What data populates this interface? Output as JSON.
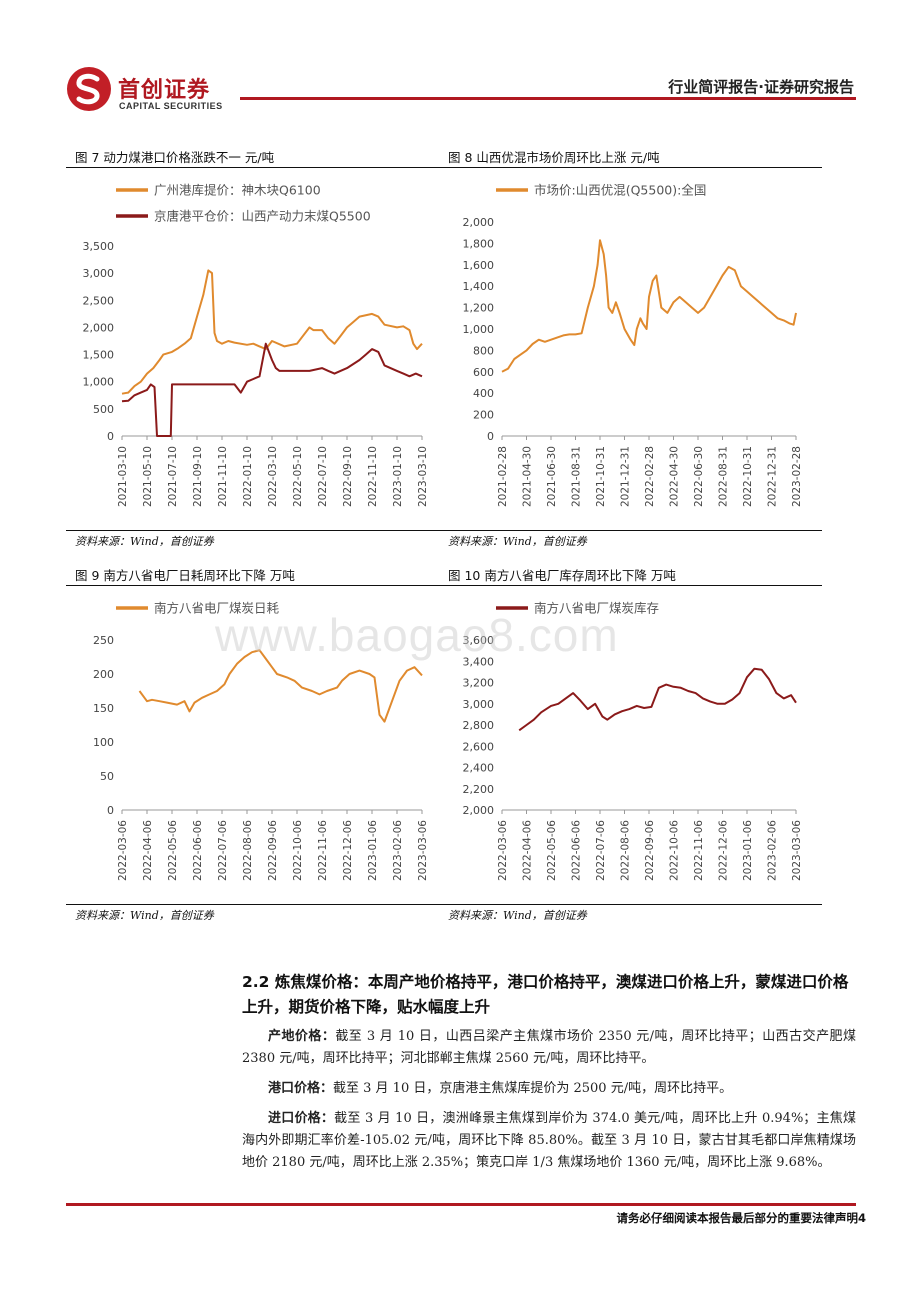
{
  "header": {
    "logo_cn": "首创证券",
    "logo_en": "CAPITAL SECURITIES",
    "report_type": "行业简评报告·证券研究报告"
  },
  "watermark": "www.baogao8.com",
  "figures": {
    "fig7": {
      "title": "图 7 动力煤港口价格涨跌不一 元/吨",
      "source": "资料来源：Wind，首创证券"
    },
    "fig8": {
      "title": "图 8 山西优混市场价周环比上涨 元/吨",
      "source": "资料来源：Wind，首创证券"
    },
    "fig9": {
      "title": "图 9 南方八省电厂日耗周环比下降 万吨",
      "source": "资料来源：Wind，首创证券"
    },
    "fig10": {
      "title": "图 10 南方八省电厂库存周环比下降 万吨",
      "source": "资料来源：Wind，首创证券"
    }
  },
  "chart_data": [
    {
      "id": "fig7",
      "type": "line",
      "title": "动力煤港口价格涨跌不一",
      "ylabel": "元/吨",
      "ylim": [
        0,
        3500
      ],
      "yticks": [
        0,
        500,
        1000,
        1500,
        2000,
        2500,
        3000,
        3500
      ],
      "ytick_labels": [
        "0",
        "500",
        "1,000",
        "1,500",
        "2,000",
        "2,500",
        "3,000",
        "3,500"
      ],
      "x_range": [
        0,
        24
      ],
      "x_ticks": [
        0,
        2,
        4,
        6,
        8,
        10,
        12,
        14,
        16,
        18,
        20,
        22,
        24
      ],
      "x_tick_labels": [
        "2021-03-10",
        "2021-05-10",
        "2021-07-10",
        "2021-09-10",
        "2021-11-10",
        "2022-01-10",
        "2022-03-10",
        "2022-05-10",
        "2022-07-10",
        "2022-09-10",
        "2022-11-10",
        "2023-01-10",
        "2023-03-10"
      ],
      "legend": "top-left",
      "series": [
        {
          "name": "广州港库提价：神木块Q6100",
          "color": "#e08a2e",
          "x": [
            0,
            0.5,
            1,
            1.5,
            2,
            2.5,
            3,
            3.3,
            4,
            4.5,
            5,
            5.5,
            6,
            6.5,
            6.9,
            7.2,
            7.4,
            7.6,
            8,
            8.5,
            9,
            10,
            10.5,
            11,
            11.5,
            12,
            13,
            14,
            15,
            15.3,
            16,
            16.5,
            17,
            17.5,
            18,
            18.5,
            19,
            20,
            20.5,
            21,
            22,
            22.5,
            23,
            23.3,
            23.6,
            24
          ],
          "values": [
            780,
            800,
            920,
            1000,
            1150,
            1250,
            1400,
            1500,
            1550,
            1620,
            1700,
            1800,
            2200,
            2600,
            3050,
            3000,
            1900,
            1750,
            1700,
            1750,
            1720,
            1680,
            1700,
            1650,
            1600,
            1750,
            1650,
            1700,
            2000,
            1950,
            1950,
            1800,
            1700,
            1850,
            2000,
            2100,
            2200,
            2250,
            2200,
            2050,
            2000,
            2020,
            1950,
            1700,
            1600,
            1700
          ]
        },
        {
          "name": "京唐港平仓价：山西产动力末煤Q5500",
          "color": "#8b1a1a",
          "x": [
            0,
            0.5,
            1,
            1.5,
            2,
            2.3,
            2.6,
            2.8,
            3,
            3.8,
            3.9,
            4,
            5,
            6,
            7,
            8,
            9,
            9.5,
            10,
            10.5,
            11,
            11.5,
            12,
            12.3,
            12.6,
            12.9,
            13.5,
            14,
            15,
            16,
            16.5,
            17,
            18,
            19,
            19.5,
            20,
            20.5,
            21,
            22,
            22.5,
            23,
            23.5,
            24
          ],
          "values": [
            640,
            650,
            750,
            800,
            850,
            950,
            900,
            0,
            0,
            0,
            0,
            950,
            950,
            950,
            950,
            950,
            950,
            800,
            1000,
            1050,
            1100,
            1700,
            1400,
            1250,
            1200,
            1200,
            1200,
            1200,
            1200,
            1250,
            1200,
            1150,
            1250,
            1400,
            1500,
            1600,
            1550,
            1300,
            1200,
            1150,
            1100,
            1150,
            1100
          ]
        }
      ]
    },
    {
      "id": "fig8",
      "type": "line",
      "title": "山西优混市场价周环比上涨",
      "ylabel": "元/吨",
      "ylim": [
        0,
        2000
      ],
      "yticks": [
        0,
        200,
        400,
        600,
        800,
        1000,
        1200,
        1400,
        1600,
        1800,
        2000
      ],
      "ytick_labels": [
        "0",
        "200",
        "400",
        "600",
        "800",
        "1,000",
        "1,200",
        "1,400",
        "1,600",
        "1,800",
        "2,000"
      ],
      "x_range": [
        0,
        24
      ],
      "x_ticks": [
        0,
        2,
        4,
        6,
        8,
        10,
        12,
        14,
        16,
        18,
        20,
        22,
        24
      ],
      "x_tick_labels": [
        "2021-02-28",
        "2021-04-30",
        "2021-06-30",
        "2021-08-31",
        "2021-10-31",
        "2021-12-31",
        "2022-02-28",
        "2022-04-30",
        "2022-06-30",
        "2022-08-31",
        "2022-10-31",
        "2022-12-31",
        "2023-02-28"
      ],
      "legend": "top-left",
      "series": [
        {
          "name": "市场价:山西优混(Q5500):全国",
          "color": "#e08a2e",
          "x": [
            0,
            0.5,
            1,
            1.5,
            2,
            2.5,
            3,
            3.5,
            4,
            4.5,
            5,
            5.5,
            6,
            6.5,
            7,
            7.5,
            7.8,
            8,
            8.3,
            8.5,
            8.7,
            9,
            9.3,
            9.6,
            10,
            10.5,
            10.8,
            11,
            11.3,
            11.5,
            11.8,
            12,
            12.3,
            12.6,
            13,
            13.5,
            14,
            14.5,
            15,
            15.5,
            16,
            16.5,
            17,
            17.5,
            18,
            18.5,
            19,
            19.5,
            20,
            20.5,
            21,
            21.5,
            22,
            22.5,
            23,
            23.5,
            23.8,
            24
          ],
          "values": [
            600,
            630,
            720,
            760,
            800,
            860,
            900,
            880,
            900,
            920,
            940,
            950,
            950,
            960,
            1200,
            1400,
            1600,
            1830,
            1700,
            1500,
            1200,
            1150,
            1250,
            1150,
            1000,
            900,
            850,
            1000,
            1100,
            1050,
            1000,
            1300,
            1450,
            1500,
            1200,
            1150,
            1250,
            1300,
            1250,
            1200,
            1150,
            1200,
            1300,
            1400,
            1500,
            1580,
            1550,
            1400,
            1350,
            1300,
            1250,
            1200,
            1150,
            1100,
            1080,
            1050,
            1040,
            1150
          ]
        }
      ]
    },
    {
      "id": "fig9",
      "type": "line",
      "title": "南方八省电厂日耗周环比下降",
      "ylabel": "万吨",
      "ylim": [
        0,
        250
      ],
      "yticks": [
        0,
        50,
        100,
        150,
        200,
        250
      ],
      "ytick_labels": [
        "0",
        "50",
        "100",
        "150",
        "200",
        "250"
      ],
      "x_range": [
        0,
        12
      ],
      "x_ticks": [
        0,
        1,
        2,
        3,
        4,
        5,
        6,
        7,
        8,
        9,
        10,
        11,
        12
      ],
      "x_tick_labels": [
        "2022-03-06",
        "2022-04-06",
        "2022-05-06",
        "2022-06-06",
        "2022-07-06",
        "2022-08-06",
        "2022-09-06",
        "2022-10-06",
        "2022-11-06",
        "2022-12-06",
        "2023-01-06",
        "2023-02-06",
        "2023-03-06"
      ],
      "legend": "top-left",
      "series": [
        {
          "name": "南方八省电厂煤炭日耗",
          "color": "#e08a2e",
          "x": [
            0.7,
            0.9,
            1,
            1.2,
            1.5,
            1.8,
            2.2,
            2.5,
            2.7,
            2.9,
            3.2,
            3.5,
            3.8,
            4.1,
            4.3,
            4.6,
            4.9,
            5.2,
            5.5,
            5.8,
            6,
            6.2,
            6.6,
            6.9,
            7.2,
            7.6,
            7.9,
            8.2,
            8.6,
            8.8,
            9.1,
            9.5,
            9.9,
            10.1,
            10.3,
            10.5,
            10.8,
            11.1,
            11.4,
            11.7,
            12
          ],
          "values": [
            175,
            165,
            160,
            162,
            160,
            158,
            155,
            160,
            145,
            158,
            165,
            170,
            175,
            185,
            200,
            215,
            225,
            232,
            235,
            220,
            210,
            200,
            195,
            190,
            180,
            175,
            170,
            175,
            180,
            190,
            200,
            205,
            200,
            195,
            140,
            130,
            160,
            190,
            205,
            210,
            198
          ]
        }
      ]
    },
    {
      "id": "fig10",
      "type": "line",
      "title": "南方八省电厂库存周环比下降",
      "ylabel": "万吨",
      "ylim": [
        2000,
        3600
      ],
      "yticks": [
        2000,
        2200,
        2400,
        2600,
        2800,
        3000,
        3200,
        3400,
        3600
      ],
      "ytick_labels": [
        "2,000",
        "2,200",
        "2,400",
        "2,600",
        "2,800",
        "3,000",
        "3,200",
        "3,400",
        "3,600"
      ],
      "x_range": [
        0,
        12
      ],
      "x_ticks": [
        0,
        1,
        2,
        3,
        4,
        5,
        6,
        7,
        8,
        9,
        10,
        11,
        12
      ],
      "x_tick_labels": [
        "2022-03-06",
        "2022-04-06",
        "2022-05-06",
        "2022-06-06",
        "2022-07-06",
        "2022-08-06",
        "2022-09-06",
        "2022-10-06",
        "2022-11-06",
        "2022-12-06",
        "2023-01-06",
        "2023-02-06",
        "2023-03-06"
      ],
      "legend": "top-left",
      "series": [
        {
          "name": "南方八省电厂煤炭库存",
          "color": "#8b1a1a",
          "x": [
            0.7,
            1,
            1.3,
            1.6,
            2,
            2.3,
            2.6,
            2.9,
            3.2,
            3.5,
            3.8,
            4.1,
            4.3,
            4.6,
            4.9,
            5.2,
            5.5,
            5.8,
            6.1,
            6.4,
            6.7,
            7,
            7.3,
            7.6,
            7.9,
            8.2,
            8.5,
            8.8,
            9.1,
            9.4,
            9.7,
            10,
            10.3,
            10.6,
            10.9,
            11.2,
            11.5,
            11.8,
            12
          ],
          "values": [
            2750,
            2800,
            2850,
            2920,
            2980,
            3000,
            3050,
            3100,
            3030,
            2950,
            3000,
            2880,
            2850,
            2900,
            2930,
            2950,
            2980,
            2960,
            2970,
            3150,
            3180,
            3160,
            3150,
            3120,
            3100,
            3050,
            3020,
            3000,
            3000,
            3040,
            3100,
            3250,
            3330,
            3320,
            3230,
            3100,
            3050,
            3080,
            3010
          ]
        }
      ]
    }
  ],
  "section": {
    "title": "2.2 炼焦煤价格：本周产地价格持平，港口价格持平，澳煤进口价格上升，蒙煤进口价格上升，期货价格下降，贴水幅度上升",
    "paragraphs": [
      {
        "lead": "产地价格：",
        "text": "截至 3 月 10 日，山西吕梁产主焦煤市场价 2350 元/吨，周环比持平；山西古交产肥煤 2380 元/吨，周环比持平；河北邯郸主焦煤 2560 元/吨，周环比持平。"
      },
      {
        "lead": "港口价格：",
        "text": "截至 3 月 10 日，京唐港主焦煤库提价为 2500 元/吨，周环比持平。"
      },
      {
        "lead": "进口价格：",
        "text": "截至 3 月 10 日，澳洲峰景主焦煤到岸价为 374.0 美元/吨，周环比上升 0.94%；主焦煤海内外即期汇率价差-105.02 元/吨，周环比下降 85.80%。截至 3 月 10 日，蒙古甘其毛都口岸焦精煤场地价 2180 元/吨，周环比上涨 2.35%；策克口岸 1/3 焦煤场地价 1360 元/吨，周环比上涨 9.68%。"
      }
    ]
  },
  "footer": {
    "disclaimer": "请务必仔细阅读本报告最后部分的重要法律声明",
    "page_number": "4"
  },
  "colors": {
    "brand_red": "#b01820",
    "orange": "#e08a2e",
    "dark_red": "#8b1a1a"
  }
}
